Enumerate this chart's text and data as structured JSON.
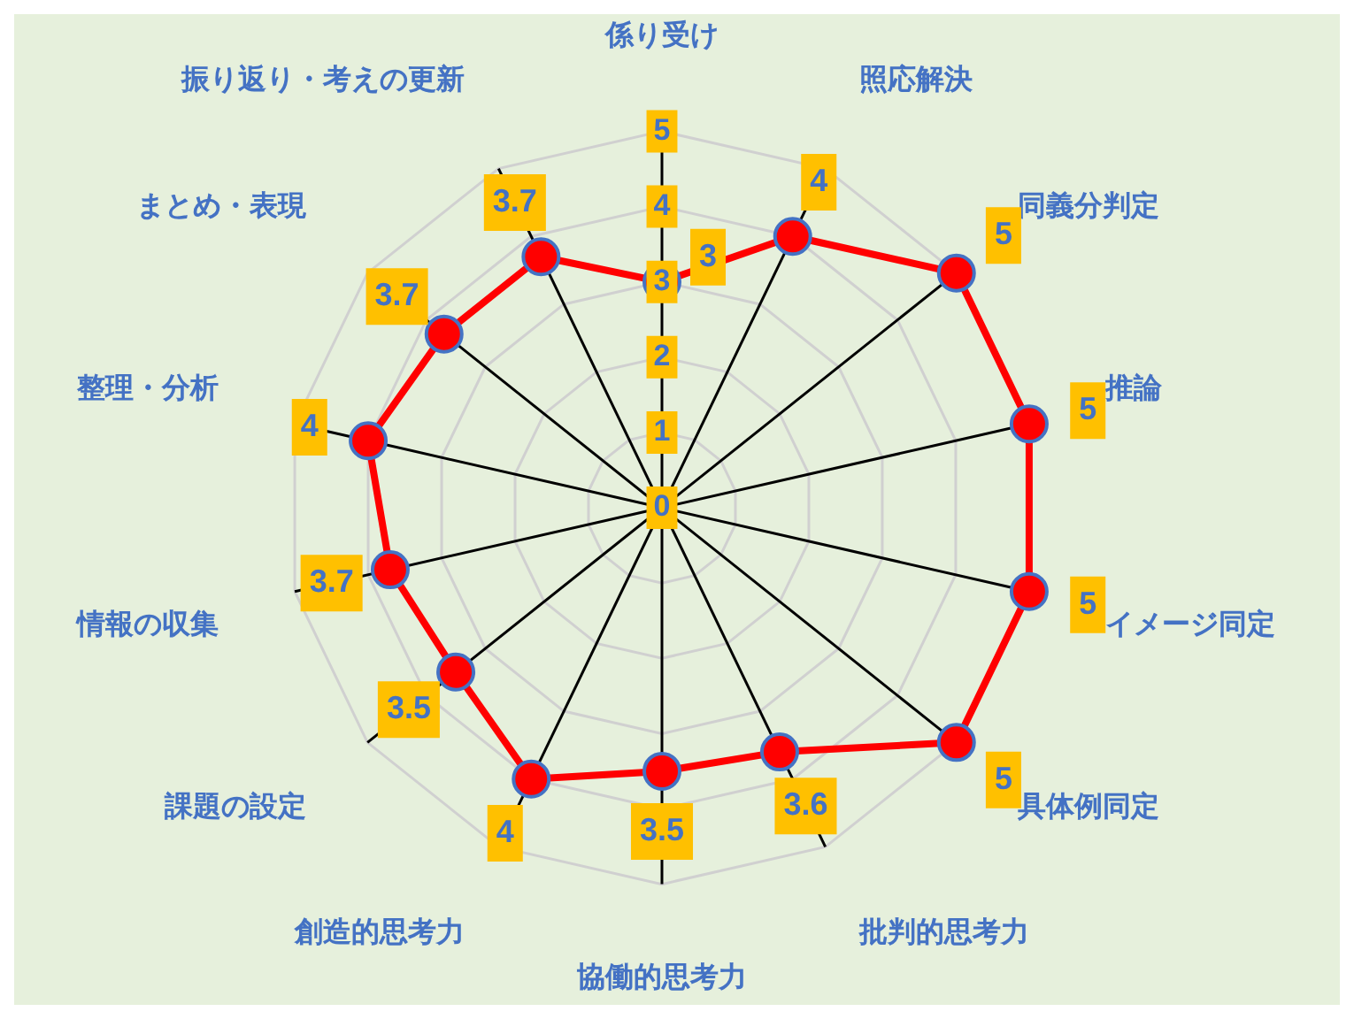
{
  "chart_data": {
    "type": "radar",
    "categories": [
      "係り受け",
      "照応解決",
      "同義分判定",
      "推論",
      "イメージ同定",
      "具体例同定",
      "批判的思考力",
      "協働的思考力",
      "創造的思考力",
      "課題の設定",
      "情報の収集",
      "整理・分析",
      "まとめ・表現",
      "振り返り・考えの更新"
    ],
    "series": [
      {
        "color": "#ff0000",
        "values": [
          3,
          4,
          5,
          5,
          5,
          5,
          3.6,
          3.5,
          4,
          3.5,
          3.7,
          4,
          3.7,
          3.7
        ]
      }
    ],
    "ylim": [
      0,
      5
    ],
    "yticks": [
      0,
      1,
      2,
      3,
      4,
      5
    ],
    "grid": true,
    "legend": false,
    "marker": "circle",
    "line_style": "solid",
    "data_labels": true
  }
}
